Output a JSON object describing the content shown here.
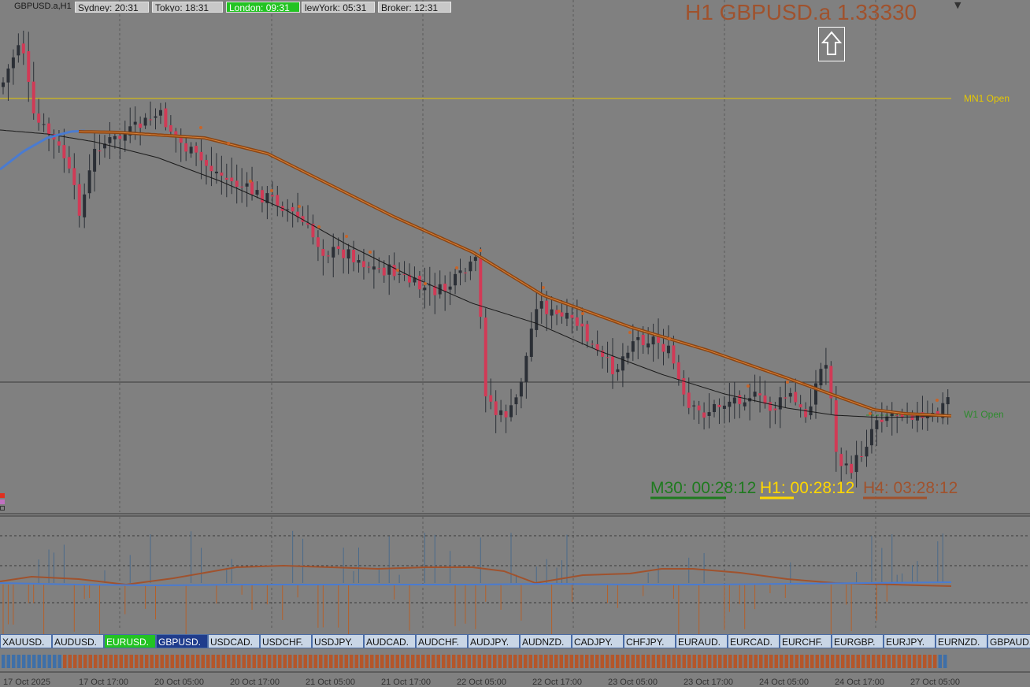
{
  "window": {
    "symbol_tf": "GBPUSD.a,H1"
  },
  "sessions": [
    {
      "label": "Sydney: 20:31",
      "active": false
    },
    {
      "label": "Tokyo: 18:31",
      "active": false
    },
    {
      "label": "London: 09:31",
      "active": true
    },
    {
      "label": "lewYork: 05:31",
      "active": false
    },
    {
      "label": "Broker: 12:31",
      "active": false
    }
  ],
  "price_title": "H1 GBPUSD.a 1.33330",
  "levels": {
    "mn1": "MN1 Open",
    "w1": "W1 Open"
  },
  "timers": [
    {
      "label": "M30: 00:28:12",
      "color": "#1f7a1f"
    },
    {
      "label": "H1: 00:28:12",
      "color": "#ffd700"
    },
    {
      "label": "H4: 03:28:12",
      "color": "#a0522d"
    }
  ],
  "symbols": [
    {
      "label": "XAUUSD.",
      "state": "normal"
    },
    {
      "label": "AUDUSD.",
      "state": "normal"
    },
    {
      "label": "EURUSD.",
      "state": "green"
    },
    {
      "label": "GBPUSD.",
      "state": "selected"
    },
    {
      "label": "USDCAD.",
      "state": "normal"
    },
    {
      "label": "USDCHF.",
      "state": "normal"
    },
    {
      "label": "USDJPY.",
      "state": "normal"
    },
    {
      "label": "AUDCAD.",
      "state": "normal"
    },
    {
      "label": "AUDCHF.",
      "state": "normal"
    },
    {
      "label": "AUDJPY.",
      "state": "normal"
    },
    {
      "label": "AUDNZD.",
      "state": "normal"
    },
    {
      "label": "CADJPY.",
      "state": "normal"
    },
    {
      "label": "CHFJPY.",
      "state": "normal"
    },
    {
      "label": "EURAUD.",
      "state": "normal"
    },
    {
      "label": "EURCAD.",
      "state": "normal"
    },
    {
      "label": "EURCHF.",
      "state": "normal"
    },
    {
      "label": "EURGBP.",
      "state": "normal"
    },
    {
      "label": "EURJPY.",
      "state": "normal"
    },
    {
      "label": "EURNZD.",
      "state": "normal"
    },
    {
      "label": "GBPAUD.",
      "state": "normal"
    }
  ],
  "dates": [
    "17 Oct 2025",
    "17 Oct 17:00",
    "20 Oct 05:00",
    "20 Oct 17:00",
    "21 Oct 05:00",
    "21 Oct 17:00",
    "22 Oct 05:00",
    "22 Oct 17:00",
    "23 Oct 05:00",
    "23 Oct 17:00",
    "24 Oct 05:00",
    "24 Oct 17:00",
    "27 Oct 05:00"
  ],
  "colors": {
    "bull": "#2b2f36",
    "bear": "#d13a56",
    "ema_slow": "#8b4513",
    "ema_fast": "#4a7bd0",
    "mn1_line": "#e6c800",
    "w1_line": "#2e8b2e"
  }
}
